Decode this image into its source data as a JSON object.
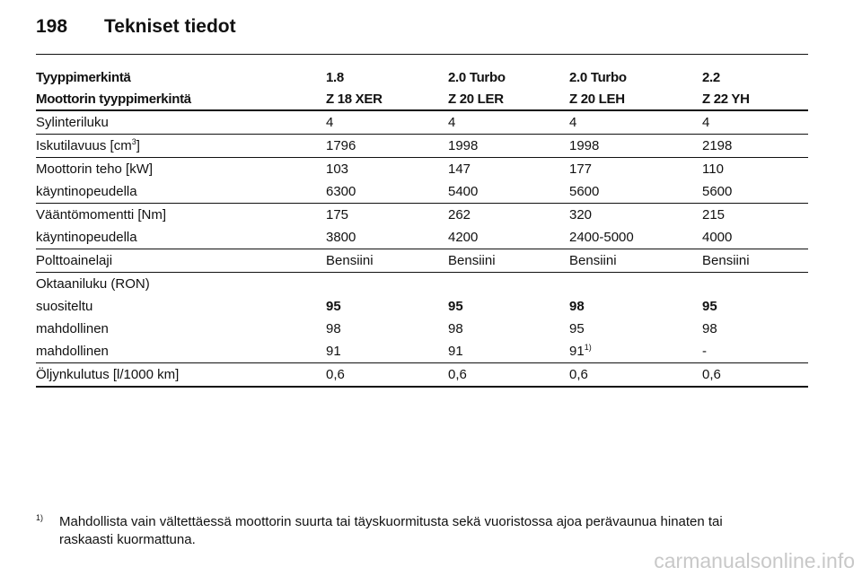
{
  "header": {
    "page_number": "198",
    "title": "Tekniset tiedot"
  },
  "table": {
    "header": [
      [
        "Tyyppimerkintä",
        "1.8",
        "2.0 Turbo",
        "2.0 Turbo",
        "2.2"
      ],
      [
        "Moottorin tyyppimerkintä",
        "Z 18 XER",
        "Z 20 LER",
        "Z 20 LEH",
        "Z 22 YH"
      ]
    ],
    "groups": [
      [
        [
          "Sylinteriluku",
          "4",
          "4",
          "4",
          "4"
        ]
      ],
      [
        [
          {
            "text": "Iskutilavuus [cm",
            "sup": "3",
            "after": "]"
          },
          "1796",
          "1998",
          "1998",
          "2198"
        ]
      ],
      [
        [
          "Moottorin teho [kW]",
          "103",
          "147",
          "177",
          "110"
        ],
        [
          "käyntinopeudella",
          "6300",
          "5400",
          "5600",
          "5600"
        ]
      ],
      [
        [
          "Vääntömomentti [Nm]",
          "175",
          "262",
          "320",
          "215"
        ],
        [
          "käyntinopeudella",
          "3800",
          "4200",
          "2400-5000",
          "4000"
        ]
      ],
      [
        [
          "Polttoainelaji",
          "Bensiini",
          "Bensiini",
          "Bensiini",
          "Bensiini"
        ]
      ],
      [
        [
          "Oktaaniluku (RON)"
        ],
        [
          "suositeltu",
          "95",
          "95",
          "98",
          "95"
        ],
        [
          "mahdollinen",
          "98",
          "98",
          "95",
          "98"
        ],
        [
          "mahdollinen",
          "91",
          "91",
          {
            "text": "91",
            "sup": "1)"
          },
          "-"
        ]
      ],
      [
        [
          "Öljynkulutus [l/1000 km]",
          "0,6",
          "0,6",
          "0,6",
          "0,6"
        ]
      ]
    ]
  },
  "footnote": {
    "marker": "1)",
    "text": "Mahdollista vain vältettäessä moottorin suurta tai täyskuormitusta sekä vuoristossa ajoa perävaunua hinaten tai raskaasti kuormattuna."
  },
  "watermark": "carmanualsonline.info"
}
